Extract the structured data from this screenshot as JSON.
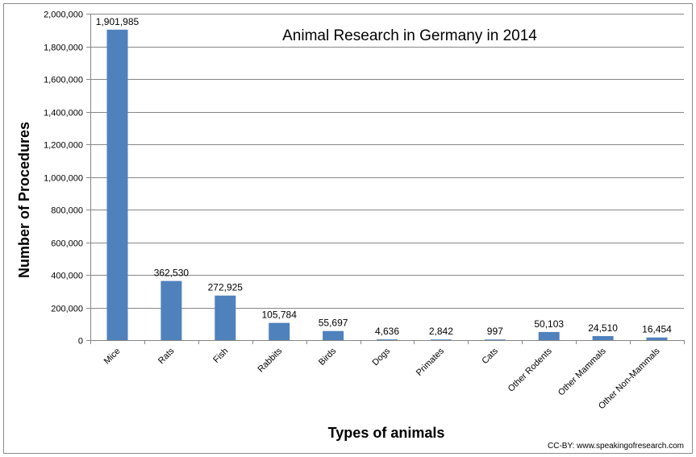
{
  "chart_data": {
    "type": "bar",
    "title": "Animal Research in Germany in 2014",
    "xlabel": "Types of animals",
    "ylabel": "Number of Procedures",
    "credit": "CC-BY: www.speakingofresearch.com",
    "categories": [
      "Mice",
      "Rats",
      "Fish",
      "Rabbits",
      "Birds",
      "Dogs",
      "Primates",
      "Cats",
      "Other Rodents",
      "Other Mammals",
      "Other Non-Mammals"
    ],
    "values": [
      1901985,
      362530,
      272925,
      105784,
      55697,
      4636,
      2842,
      997,
      50103,
      24510,
      16454
    ],
    "data_labels": [
      "1,901,985",
      "362,530",
      "272,925",
      "105,784",
      "55,697",
      "4,636",
      "2,842",
      "997",
      "50,103",
      "24,510",
      "16,454"
    ],
    "ylim": [
      0,
      2000000
    ],
    "yticks": [
      0,
      200000,
      400000,
      600000,
      800000,
      1000000,
      1200000,
      1400000,
      1600000,
      1800000,
      2000000
    ],
    "ytick_labels": [
      "0",
      "200,000",
      "400,000",
      "600,000",
      "800,000",
      "1,000,000",
      "1,200,000",
      "1,400,000",
      "1,600,000",
      "1,800,000",
      "2,000,000"
    ],
    "grid": true,
    "bar_color": "#4f81bd",
    "grid_color": "#868686"
  }
}
